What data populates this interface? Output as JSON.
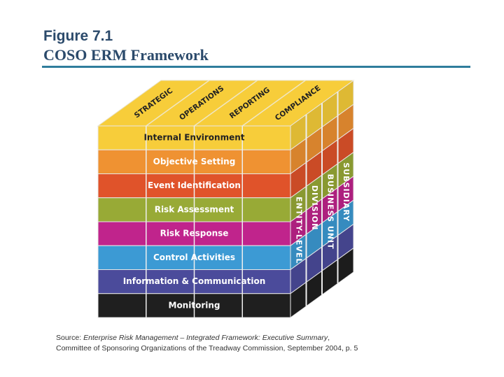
{
  "header": {
    "figure": "Figure 7.1",
    "title": "COSO ERM Framework"
  },
  "cube": {
    "top_labels": [
      "STRATEGIC",
      "OPERATIONS",
      "REPORTING",
      "COMPLIANCE"
    ],
    "rows": [
      {
        "label": "Internal Environment",
        "color": "#f7cd3a",
        "text_color": "#222222"
      },
      {
        "label": "Objective Setting",
        "color": "#ef9232",
        "text_color": "#ffffff"
      },
      {
        "label": "Event Identification",
        "color": "#e0532a",
        "text_color": "#ffffff"
      },
      {
        "label": "Risk Assessment",
        "color": "#98aa36",
        "text_color": "#ffffff"
      },
      {
        "label": "Risk Response",
        "color": "#c0248c",
        "text_color": "#ffffff"
      },
      {
        "label": "Control Activities",
        "color": "#3c9ad4",
        "text_color": "#ffffff"
      },
      {
        "label": "Information & Communication",
        "color": "#4b4b9b",
        "text_color": "#ffffff"
      },
      {
        "label": "Monitoring",
        "color": "#1f1f1f",
        "text_color": "#ffffff"
      }
    ],
    "side_labels": [
      "ENTITY-LEVEL",
      "DIVISION",
      "BUSINESS UNIT",
      "SUBSIDIARY"
    ],
    "top_color": "#f7cd3a"
  },
  "source": {
    "prefix": "Source: ",
    "work": "Enterprise Risk Management – Integrated Framework: Executive Summary",
    "line2": "Committee of Sponsoring Organizations of the Treadway Commission, September 2004, p. 5"
  }
}
